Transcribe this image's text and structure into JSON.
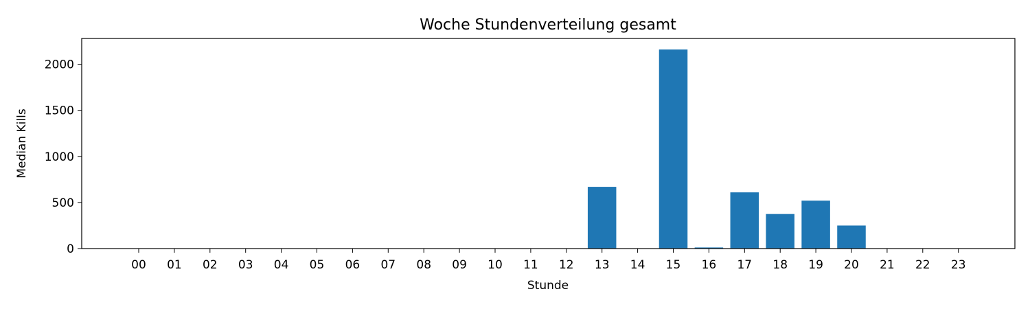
{
  "chart_data": {
    "type": "bar",
    "title": "Woche Stundenverteilung gesamt",
    "xlabel": "Stunde",
    "ylabel": "Median Kills",
    "categories": [
      "00",
      "01",
      "02",
      "03",
      "04",
      "05",
      "06",
      "07",
      "08",
      "09",
      "10",
      "11",
      "12",
      "13",
      "14",
      "15",
      "16",
      "17",
      "18",
      "19",
      "20",
      "21",
      "22",
      "23"
    ],
    "values": [
      0,
      0,
      0,
      0,
      0,
      0,
      0,
      0,
      0,
      0,
      0,
      0,
      0,
      670,
      0,
      2160,
      12,
      610,
      375,
      520,
      250,
      0,
      0,
      0
    ],
    "ylim": [
      0,
      2280
    ],
    "yticks": [
      0,
      500,
      1000,
      1500,
      2000
    ],
    "bar_color": "#1f77b4",
    "grid": false,
    "legend": "none"
  }
}
